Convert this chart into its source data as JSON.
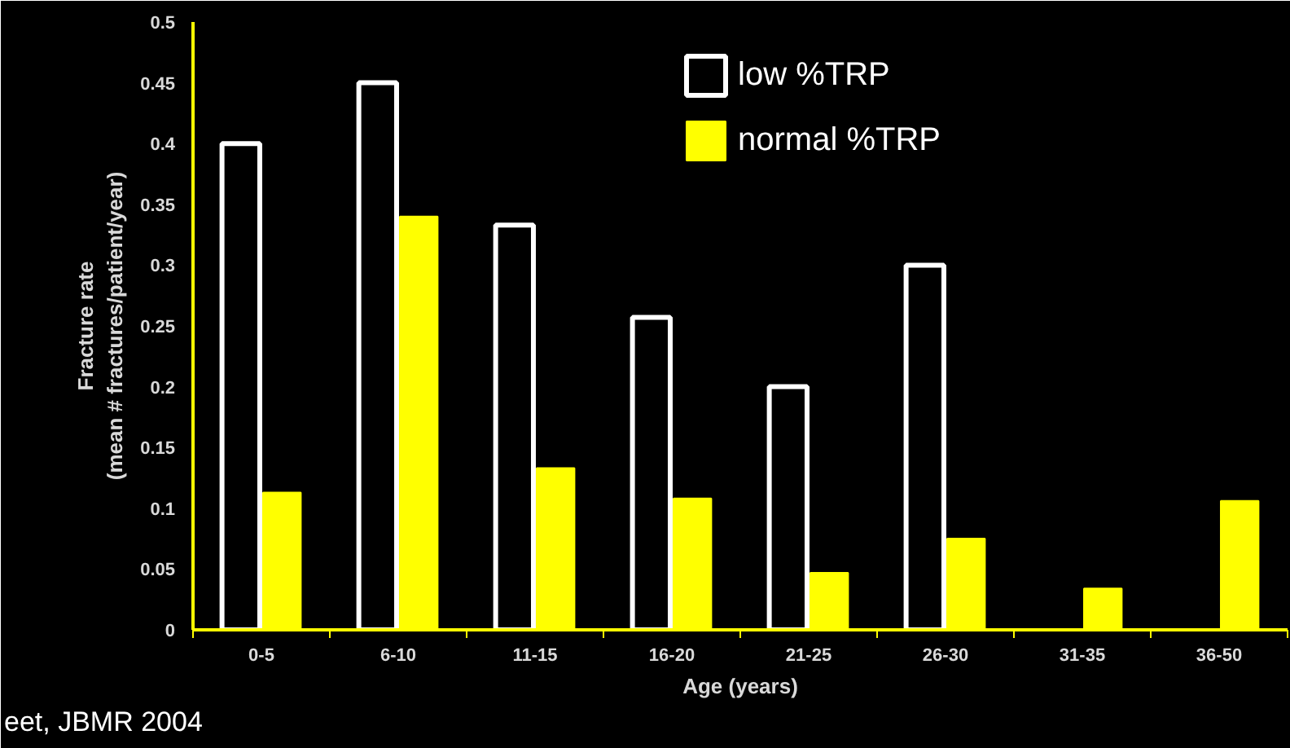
{
  "chart_data": {
    "type": "bar",
    "categories": [
      "0-5",
      "6-10",
      "11-15",
      "16-20",
      "21-25",
      "26-30",
      "31-35",
      "36-50"
    ],
    "series": [
      {
        "name": "low %TRP",
        "color": "#ffffff",
        "values": [
          0.4,
          0.45,
          0.333,
          0.257,
          0.2,
          0.3,
          null,
          null
        ]
      },
      {
        "name": "normal %TRP",
        "color": "#ffff00",
        "values": [
          0.113,
          0.34,
          0.133,
          0.108,
          0.047,
          0.075,
          0.034,
          0.106
        ]
      }
    ],
    "xlabel": "Age (years)",
    "ylabel": "Fracture rate\n(mean # fractures/patient/year)",
    "ylim": [
      0,
      0.5
    ],
    "yticks": [
      0,
      0.05,
      0.1,
      0.15,
      0.2,
      0.25,
      0.3,
      0.35,
      0.4,
      0.45,
      0.5
    ],
    "legend": "top right",
    "annotations": [
      "eet, JBMR 2004"
    ]
  }
}
